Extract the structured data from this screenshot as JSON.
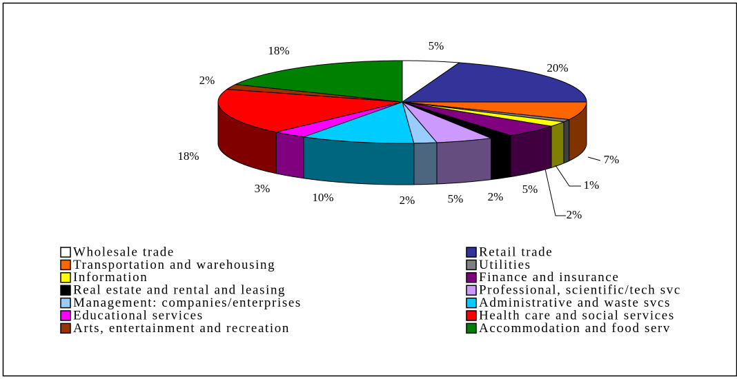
{
  "chart_data": {
    "type": "pie3d",
    "categories": [
      "Wholesale trade",
      "Retail trade",
      "Transportation and warehousing",
      "Utilities",
      "Information",
      "Finance and insurance",
      "Real estate and rental and leasing",
      "Professional, scientific/tech svc",
      "Management: companies/enterprises",
      "Administrative and waste svcs",
      "Educational services",
      "Health care and social services",
      "Arts, entertainment and recreation",
      "Accommodation and food serv"
    ],
    "values": [
      5,
      20,
      7,
      1,
      2,
      5,
      2,
      5,
      2,
      10,
      3,
      18,
      2,
      18
    ],
    "value_labels": [
      "5%",
      "20%",
      "7%",
      "1%",
      "2%",
      "5%",
      "2%",
      "5%",
      "2%",
      "10%",
      "3%",
      "18%",
      "2%",
      "18%"
    ],
    "colors": [
      "#ffffff",
      "#333399",
      "#ff6600",
      "#808080",
      "#ffff00",
      "#800080",
      "#000000",
      "#cc99ff",
      "#99ccff",
      "#00ccff",
      "#ff00ff",
      "#ff0000",
      "#993300",
      "#008000"
    ],
    "legend": "bottom"
  }
}
